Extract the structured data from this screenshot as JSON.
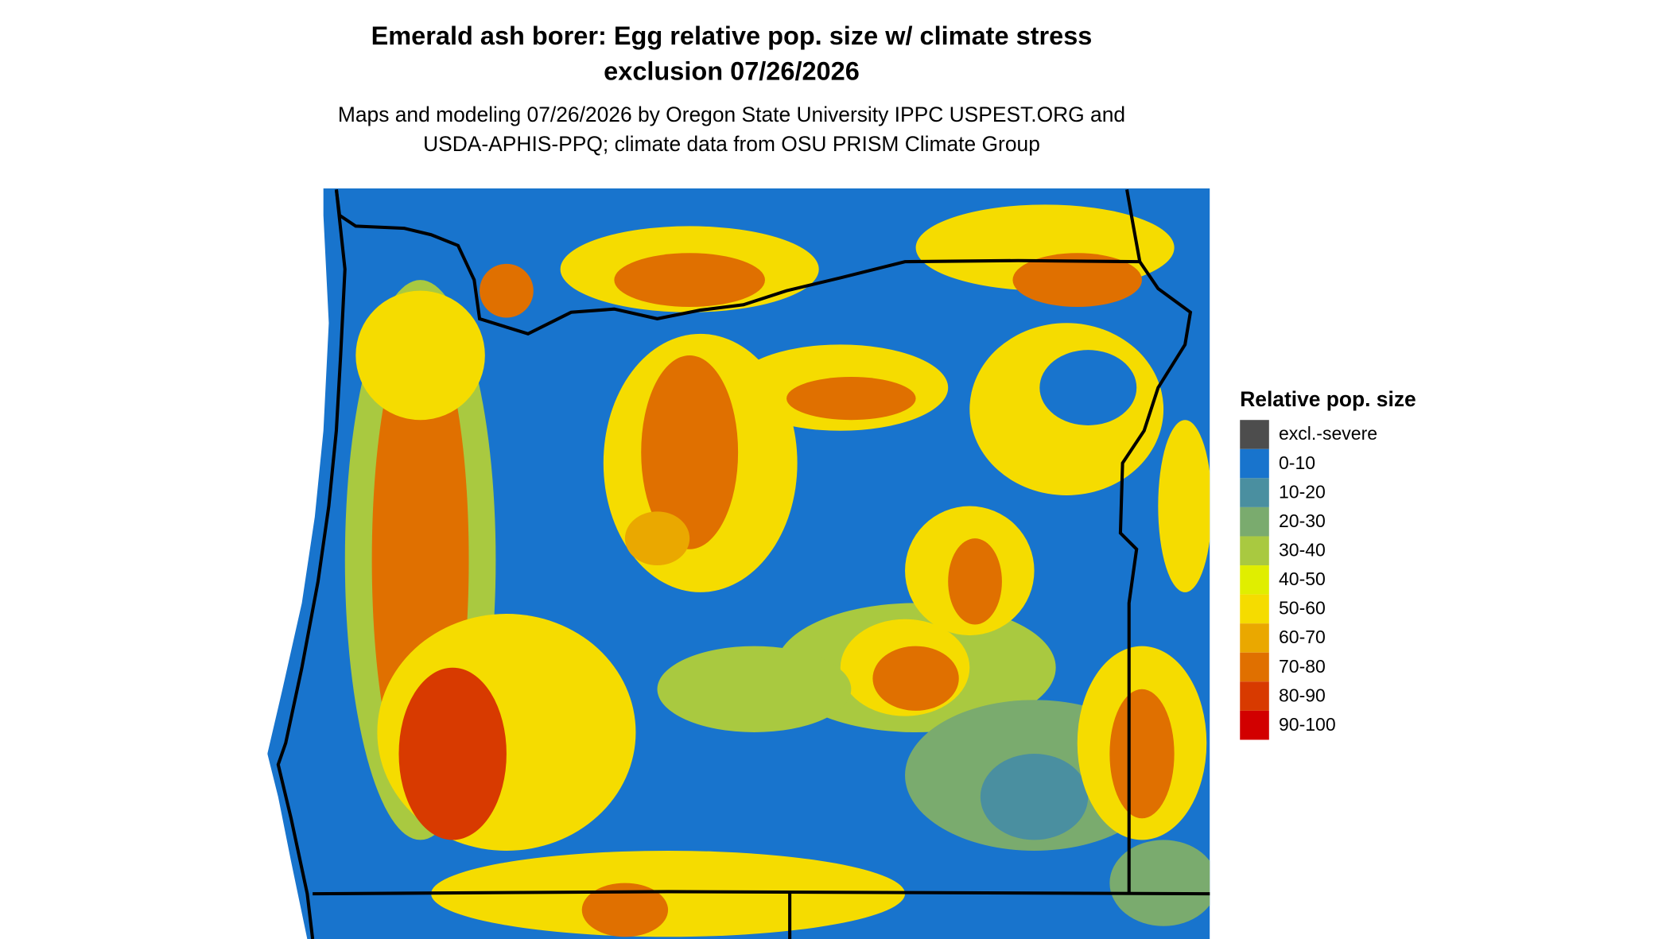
{
  "title": [
    "Emerald ash borer: Egg relative pop. size w/ climate stress",
    "exclusion 07/26/2026"
  ],
  "subtitle": [
    "Maps and modeling 07/26/2026 by Oregon State University IPPC USPEST.ORG and",
    "USDA-APHIS-PPQ; climate data from OSU PRISM Climate Group"
  ],
  "legend": {
    "title": "Relative pop. size",
    "items": [
      {
        "label": "excl.-severe",
        "color": "#4d4d4d"
      },
      {
        "label": "0-10",
        "color": "#1874cd"
      },
      {
        "label": "10-20",
        "color": "#4a8fa0"
      },
      {
        "label": "20-30",
        "color": "#7aab6e"
      },
      {
        "label": "30-40",
        "color": "#a9c940"
      },
      {
        "label": "40-50",
        "color": "#e0ee00"
      },
      {
        "label": "50-60",
        "color": "#f5dc00"
      },
      {
        "label": "60-70",
        "color": "#eaa800"
      },
      {
        "label": "70-80",
        "color": "#e07000"
      },
      {
        "label": "80-90",
        "color": "#d83a00"
      },
      {
        "label": "90-100",
        "color": "#d20000"
      }
    ]
  }
}
